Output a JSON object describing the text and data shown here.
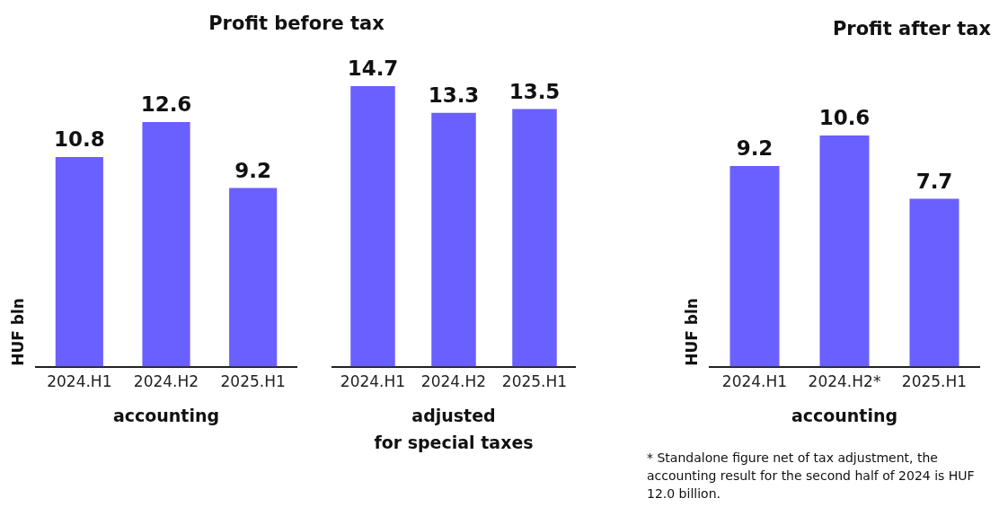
{
  "chart_data": [
    {
      "type": "bar",
      "title": "Profit before tax",
      "ylabel": "HUF bln",
      "xlabel": "accounting",
      "categories": [
        "2024.H1",
        "2024.H2",
        "2025.H1"
      ],
      "values": [
        10.8,
        12.6,
        9.2
      ],
      "color": "#6a5fff",
      "data_labels": true,
      "grid": false,
      "legend": false
    },
    {
      "type": "bar",
      "xlabel": "adjusted\nfor special taxes",
      "categories": [
        "2024.H1",
        "2024.H2",
        "2025.H1"
      ],
      "values": [
        14.7,
        13.3,
        13.5
      ],
      "color": "#6a5fff",
      "data_labels": true,
      "grid": false,
      "legend": false
    },
    {
      "type": "bar",
      "title": "Profit after tax",
      "ylabel": "HUF bln",
      "xlabel": "accounting",
      "categories": [
        "2024.H1",
        "2024.H2*",
        "2025.H1"
      ],
      "values": [
        9.2,
        10.6,
        7.7
      ],
      "color": "#6a5fff",
      "data_labels": true,
      "grid": false,
      "legend": false,
      "annotations": [
        "* Standalone figure net of tax adjustment, the accounting result for the second half of  2024 is HUF 12.0 billion."
      ]
    }
  ]
}
